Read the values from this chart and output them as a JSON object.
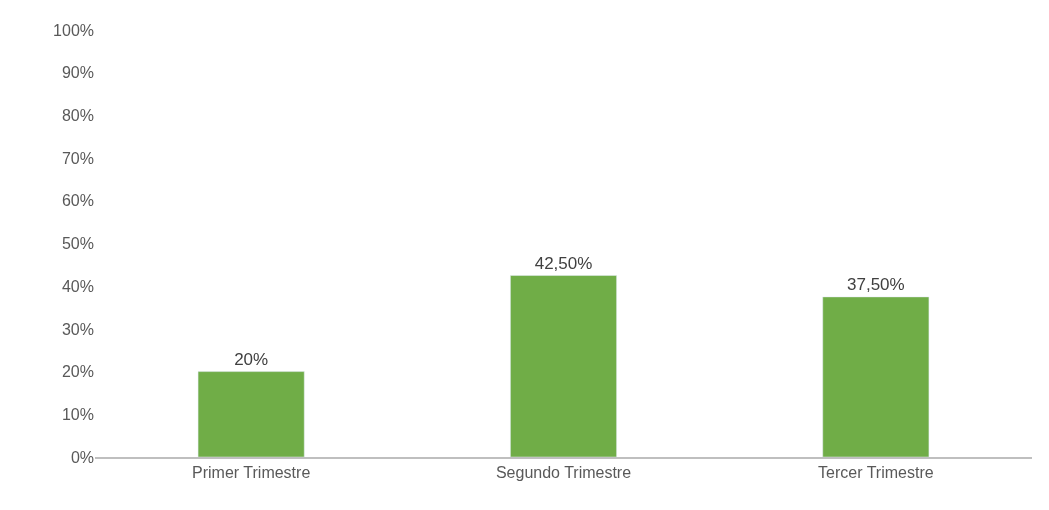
{
  "chart_data": {
    "type": "bar",
    "categories": [
      "Primer Trimestre",
      "Segundo Trimestre",
      "Tercer Trimestre"
    ],
    "values": [
      20,
      42.5,
      37.5
    ],
    "value_labels": [
      "20%",
      "42,50%",
      "37,50%"
    ],
    "color": "#70ad47",
    "ylim": [
      0,
      100
    ],
    "yticks": [
      {
        "value": 0,
        "label": "0%"
      },
      {
        "value": 10,
        "label": "10%"
      },
      {
        "value": 20,
        "label": "20%"
      },
      {
        "value": 30,
        "label": "30%"
      },
      {
        "value": 40,
        "label": "40%"
      },
      {
        "value": 50,
        "label": "50%"
      },
      {
        "value": 60,
        "label": "60%"
      },
      {
        "value": 70,
        "label": "70%"
      },
      {
        "value": 80,
        "label": "80%"
      },
      {
        "value": 90,
        "label": "90%"
      },
      {
        "value": 100,
        "label": "100%"
      }
    ],
    "grid": false
  }
}
